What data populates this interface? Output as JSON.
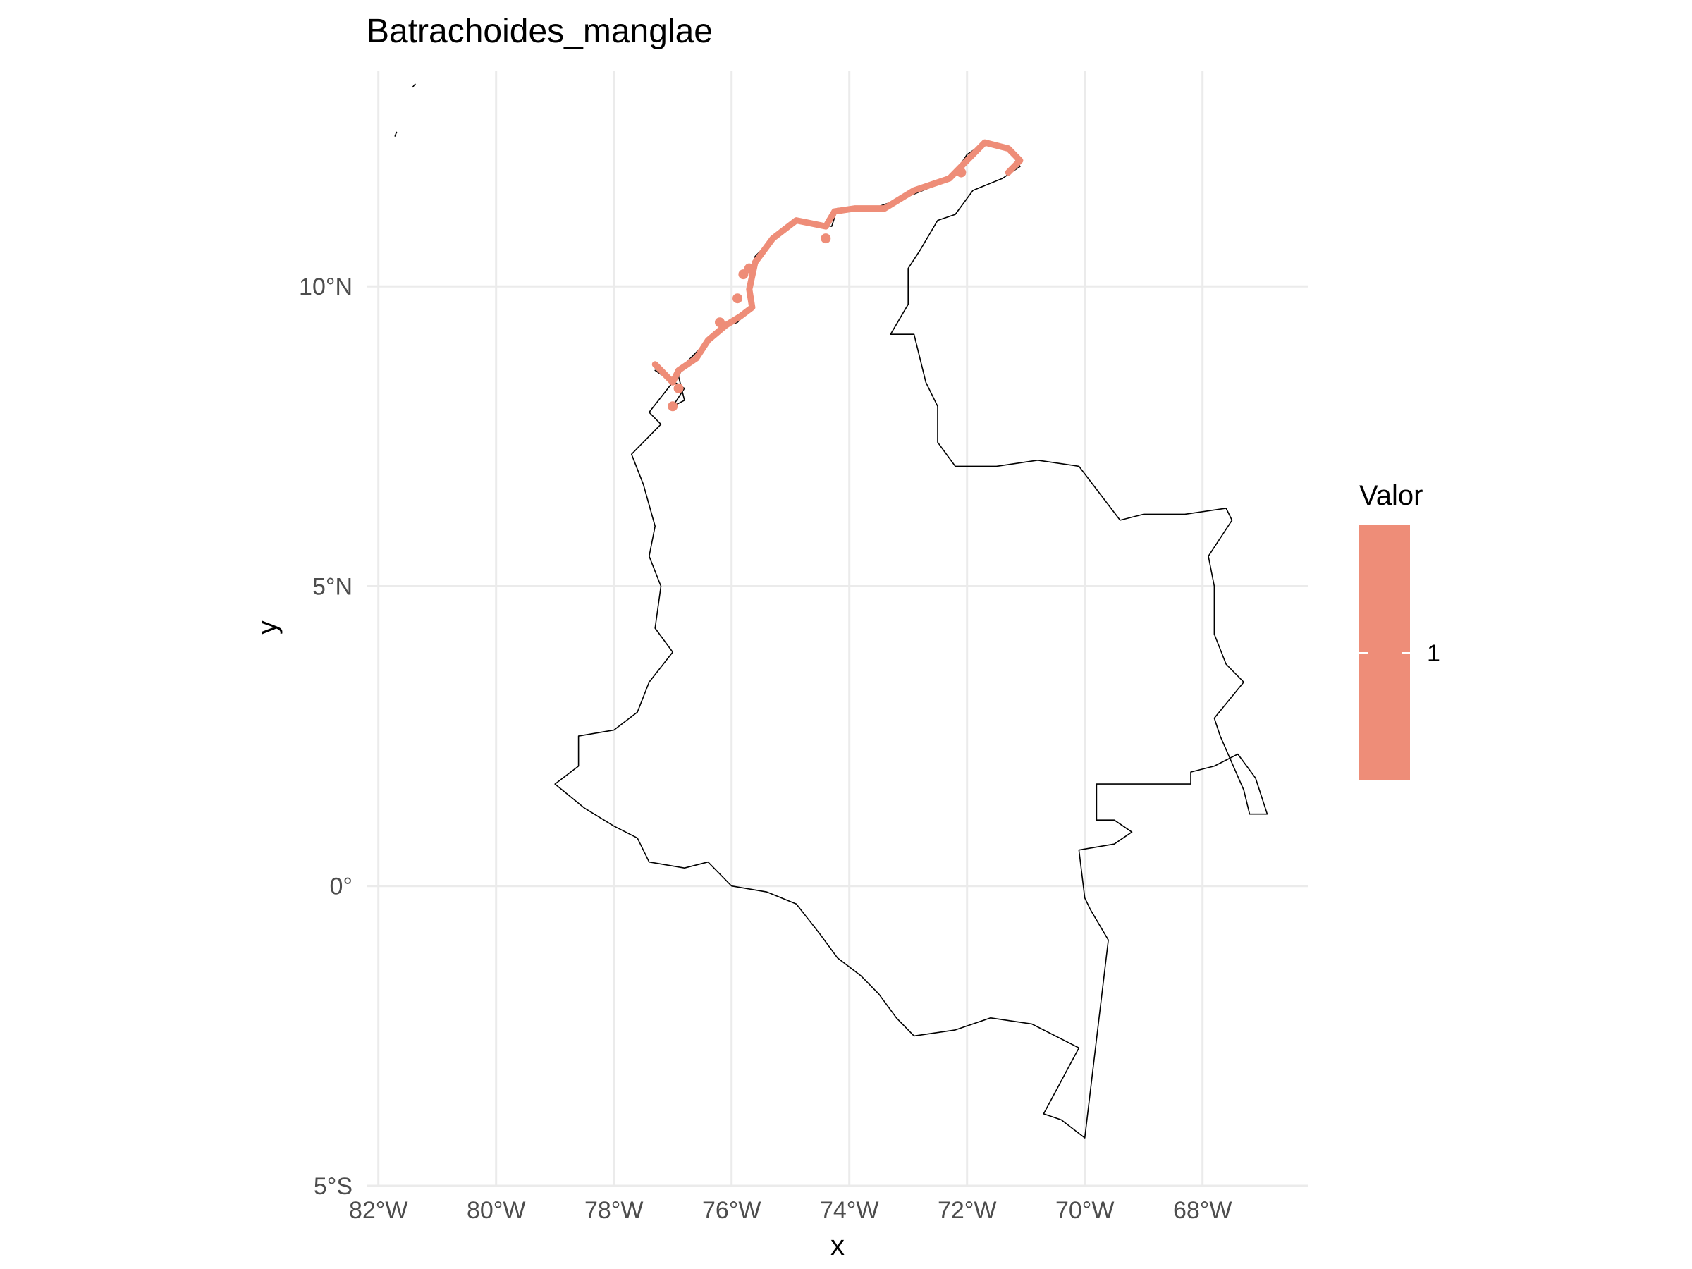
{
  "chart_data": {
    "type": "map",
    "title": "Batrachoides_manglae",
    "xlabel": "x",
    "ylabel": "y",
    "xlim": [
      -82.2,
      -66.2
    ],
    "ylim": [
      -5.0,
      13.6
    ],
    "x_ticks": [
      {
        "value": -82,
        "label": "82°W"
      },
      {
        "value": -80,
        "label": "80°W"
      },
      {
        "value": -78,
        "label": "78°W"
      },
      {
        "value": -76,
        "label": "76°W"
      },
      {
        "value": -74,
        "label": "74°W"
      },
      {
        "value": -72,
        "label": "72°W"
      },
      {
        "value": -70,
        "label": "70°W"
      },
      {
        "value": -68,
        "label": "68°W"
      }
    ],
    "y_ticks": [
      {
        "value": -5,
        "label": "5°S"
      },
      {
        "value": 0,
        "label": "0°"
      },
      {
        "value": 5,
        "label": "5°N"
      },
      {
        "value": 10,
        "label": "10°N"
      }
    ],
    "grid": true,
    "legend": {
      "title": "Valor",
      "placement": "right",
      "entries": [
        {
          "label": "1",
          "color": "#EE8D78"
        }
      ]
    },
    "colors": {
      "presence": "#EE8D78",
      "outline": "#000000",
      "grid": "#EBEBEB"
    },
    "country_outline": [
      [
        -77.3,
        8.6
      ],
      [
        -77.0,
        8.4
      ],
      [
        -77.4,
        7.9
      ],
      [
        -77.2,
        7.7
      ],
      [
        -77.7,
        7.2
      ],
      [
        -77.5,
        6.7
      ],
      [
        -77.3,
        6.0
      ],
      [
        -77.4,
        5.5
      ],
      [
        -77.2,
        5.0
      ],
      [
        -77.3,
        4.3
      ],
      [
        -77.0,
        3.9
      ],
      [
        -77.4,
        3.4
      ],
      [
        -77.6,
        2.9
      ],
      [
        -78.0,
        2.6
      ],
      [
        -78.6,
        2.5
      ],
      [
        -78.6,
        2.0
      ],
      [
        -79.0,
        1.7
      ],
      [
        -78.5,
        1.3
      ],
      [
        -78.0,
        1.0
      ],
      [
        -77.6,
        0.8
      ],
      [
        -77.4,
        0.4
      ],
      [
        -76.8,
        0.3
      ],
      [
        -76.4,
        0.4
      ],
      [
        -76.0,
        0.0
      ],
      [
        -75.4,
        -0.1
      ],
      [
        -74.9,
        -0.3
      ],
      [
        -74.5,
        -0.8
      ],
      [
        -74.2,
        -1.2
      ],
      [
        -73.8,
        -1.5
      ],
      [
        -73.5,
        -1.8
      ],
      [
        -73.2,
        -2.2
      ],
      [
        -72.9,
        -2.5
      ],
      [
        -72.2,
        -2.4
      ],
      [
        -71.6,
        -2.2
      ],
      [
        -70.9,
        -2.3
      ],
      [
        -70.1,
        -2.7
      ],
      [
        -70.7,
        -3.8
      ],
      [
        -70.4,
        -3.9
      ],
      [
        -70.0,
        -4.2
      ],
      [
        -69.6,
        -0.9
      ],
      [
        -69.9,
        -0.4
      ],
      [
        -70.0,
        -0.2
      ],
      [
        -70.1,
        0.6
      ],
      [
        -69.5,
        0.7
      ],
      [
        -69.2,
        0.9
      ],
      [
        -69.5,
        1.1
      ],
      [
        -69.8,
        1.1
      ],
      [
        -69.8,
        1.7
      ],
      [
        -68.2,
        1.7
      ],
      [
        -68.2,
        1.9
      ],
      [
        -67.8,
        2.0
      ],
      [
        -67.4,
        2.2
      ],
      [
        -67.1,
        1.8
      ],
      [
        -66.9,
        1.2
      ],
      [
        -67.2,
        1.2
      ],
      [
        -67.3,
        1.6
      ],
      [
        -67.7,
        2.5
      ],
      [
        -67.8,
        2.8
      ],
      [
        -67.3,
        3.4
      ],
      [
        -67.6,
        3.7
      ],
      [
        -67.8,
        4.2
      ],
      [
        -67.8,
        5.0
      ],
      [
        -67.9,
        5.5
      ],
      [
        -67.5,
        6.1
      ],
      [
        -67.6,
        6.3
      ],
      [
        -68.3,
        6.2
      ],
      [
        -69.0,
        6.2
      ],
      [
        -69.4,
        6.1
      ],
      [
        -70.1,
        7.0
      ],
      [
        -70.8,
        7.1
      ],
      [
        -71.5,
        7.0
      ],
      [
        -72.2,
        7.0
      ],
      [
        -72.5,
        7.4
      ],
      [
        -72.5,
        8.0
      ],
      [
        -72.7,
        8.4
      ],
      [
        -72.9,
        9.2
      ],
      [
        -73.3,
        9.2
      ],
      [
        -73.0,
        9.7
      ],
      [
        -73.0,
        10.3
      ],
      [
        -72.8,
        10.6
      ],
      [
        -72.5,
        11.1
      ],
      [
        -72.2,
        11.2
      ],
      [
        -71.9,
        11.6
      ],
      [
        -71.4,
        11.8
      ],
      [
        -71.1,
        12.0
      ],
      [
        -71.3,
        12.3
      ],
      [
        -71.7,
        12.4
      ],
      [
        -72.0,
        12.2
      ],
      [
        -72.2,
        11.9
      ],
      [
        -72.5,
        11.7
      ],
      [
        -73.0,
        11.5
      ],
      [
        -73.6,
        11.3
      ],
      [
        -74.2,
        11.3
      ],
      [
        -74.3,
        11.0
      ],
      [
        -74.9,
        11.1
      ],
      [
        -75.3,
        10.8
      ],
      [
        -75.6,
        10.5
      ],
      [
        -75.7,
        10.0
      ],
      [
        -75.7,
        9.6
      ],
      [
        -75.9,
        9.4
      ],
      [
        -76.2,
        9.3
      ],
      [
        -76.5,
        9.0
      ],
      [
        -76.8,
        8.7
      ],
      [
        -76.9,
        8.5
      ],
      [
        -76.8,
        8.1
      ],
      [
        -77.0,
        8.0
      ],
      [
        -76.8,
        8.3
      ],
      [
        -77.3,
        8.6
      ]
    ],
    "islands": [
      [
        [
          -81.72,
          12.5
        ],
        [
          -81.69,
          12.58
        ]
      ],
      [
        [
          -81.42,
          13.32
        ],
        [
          -81.37,
          13.38
        ]
      ]
    ],
    "presence_coast": [
      [
        -77.3,
        8.7
      ],
      [
        -77.0,
        8.4
      ],
      [
        -76.9,
        8.6
      ],
      [
        -76.6,
        8.8
      ],
      [
        -76.4,
        9.1
      ],
      [
        -76.1,
        9.35
      ],
      [
        -75.85,
        9.5
      ],
      [
        -75.65,
        9.65
      ],
      [
        -75.7,
        9.95
      ],
      [
        -75.6,
        10.4
      ],
      [
        -75.3,
        10.8
      ],
      [
        -74.9,
        11.1
      ],
      [
        -74.4,
        11.0
      ],
      [
        -74.25,
        11.25
      ],
      [
        -73.9,
        11.3
      ],
      [
        -73.4,
        11.3
      ],
      [
        -72.9,
        11.6
      ],
      [
        -72.3,
        11.8
      ],
      [
        -72.0,
        12.1
      ],
      [
        -71.7,
        12.4
      ],
      [
        -71.3,
        12.3
      ],
      [
        -71.1,
        12.1
      ],
      [
        -71.3,
        11.9
      ]
    ],
    "presence_points": [
      [
        -77.0,
        8.0
      ],
      [
        -76.9,
        8.3
      ],
      [
        -76.2,
        9.4
      ],
      [
        -75.9,
        9.8
      ],
      [
        -75.8,
        10.2
      ],
      [
        -75.7,
        10.3
      ],
      [
        -74.4,
        10.8
      ],
      [
        -72.1,
        11.9
      ]
    ]
  }
}
